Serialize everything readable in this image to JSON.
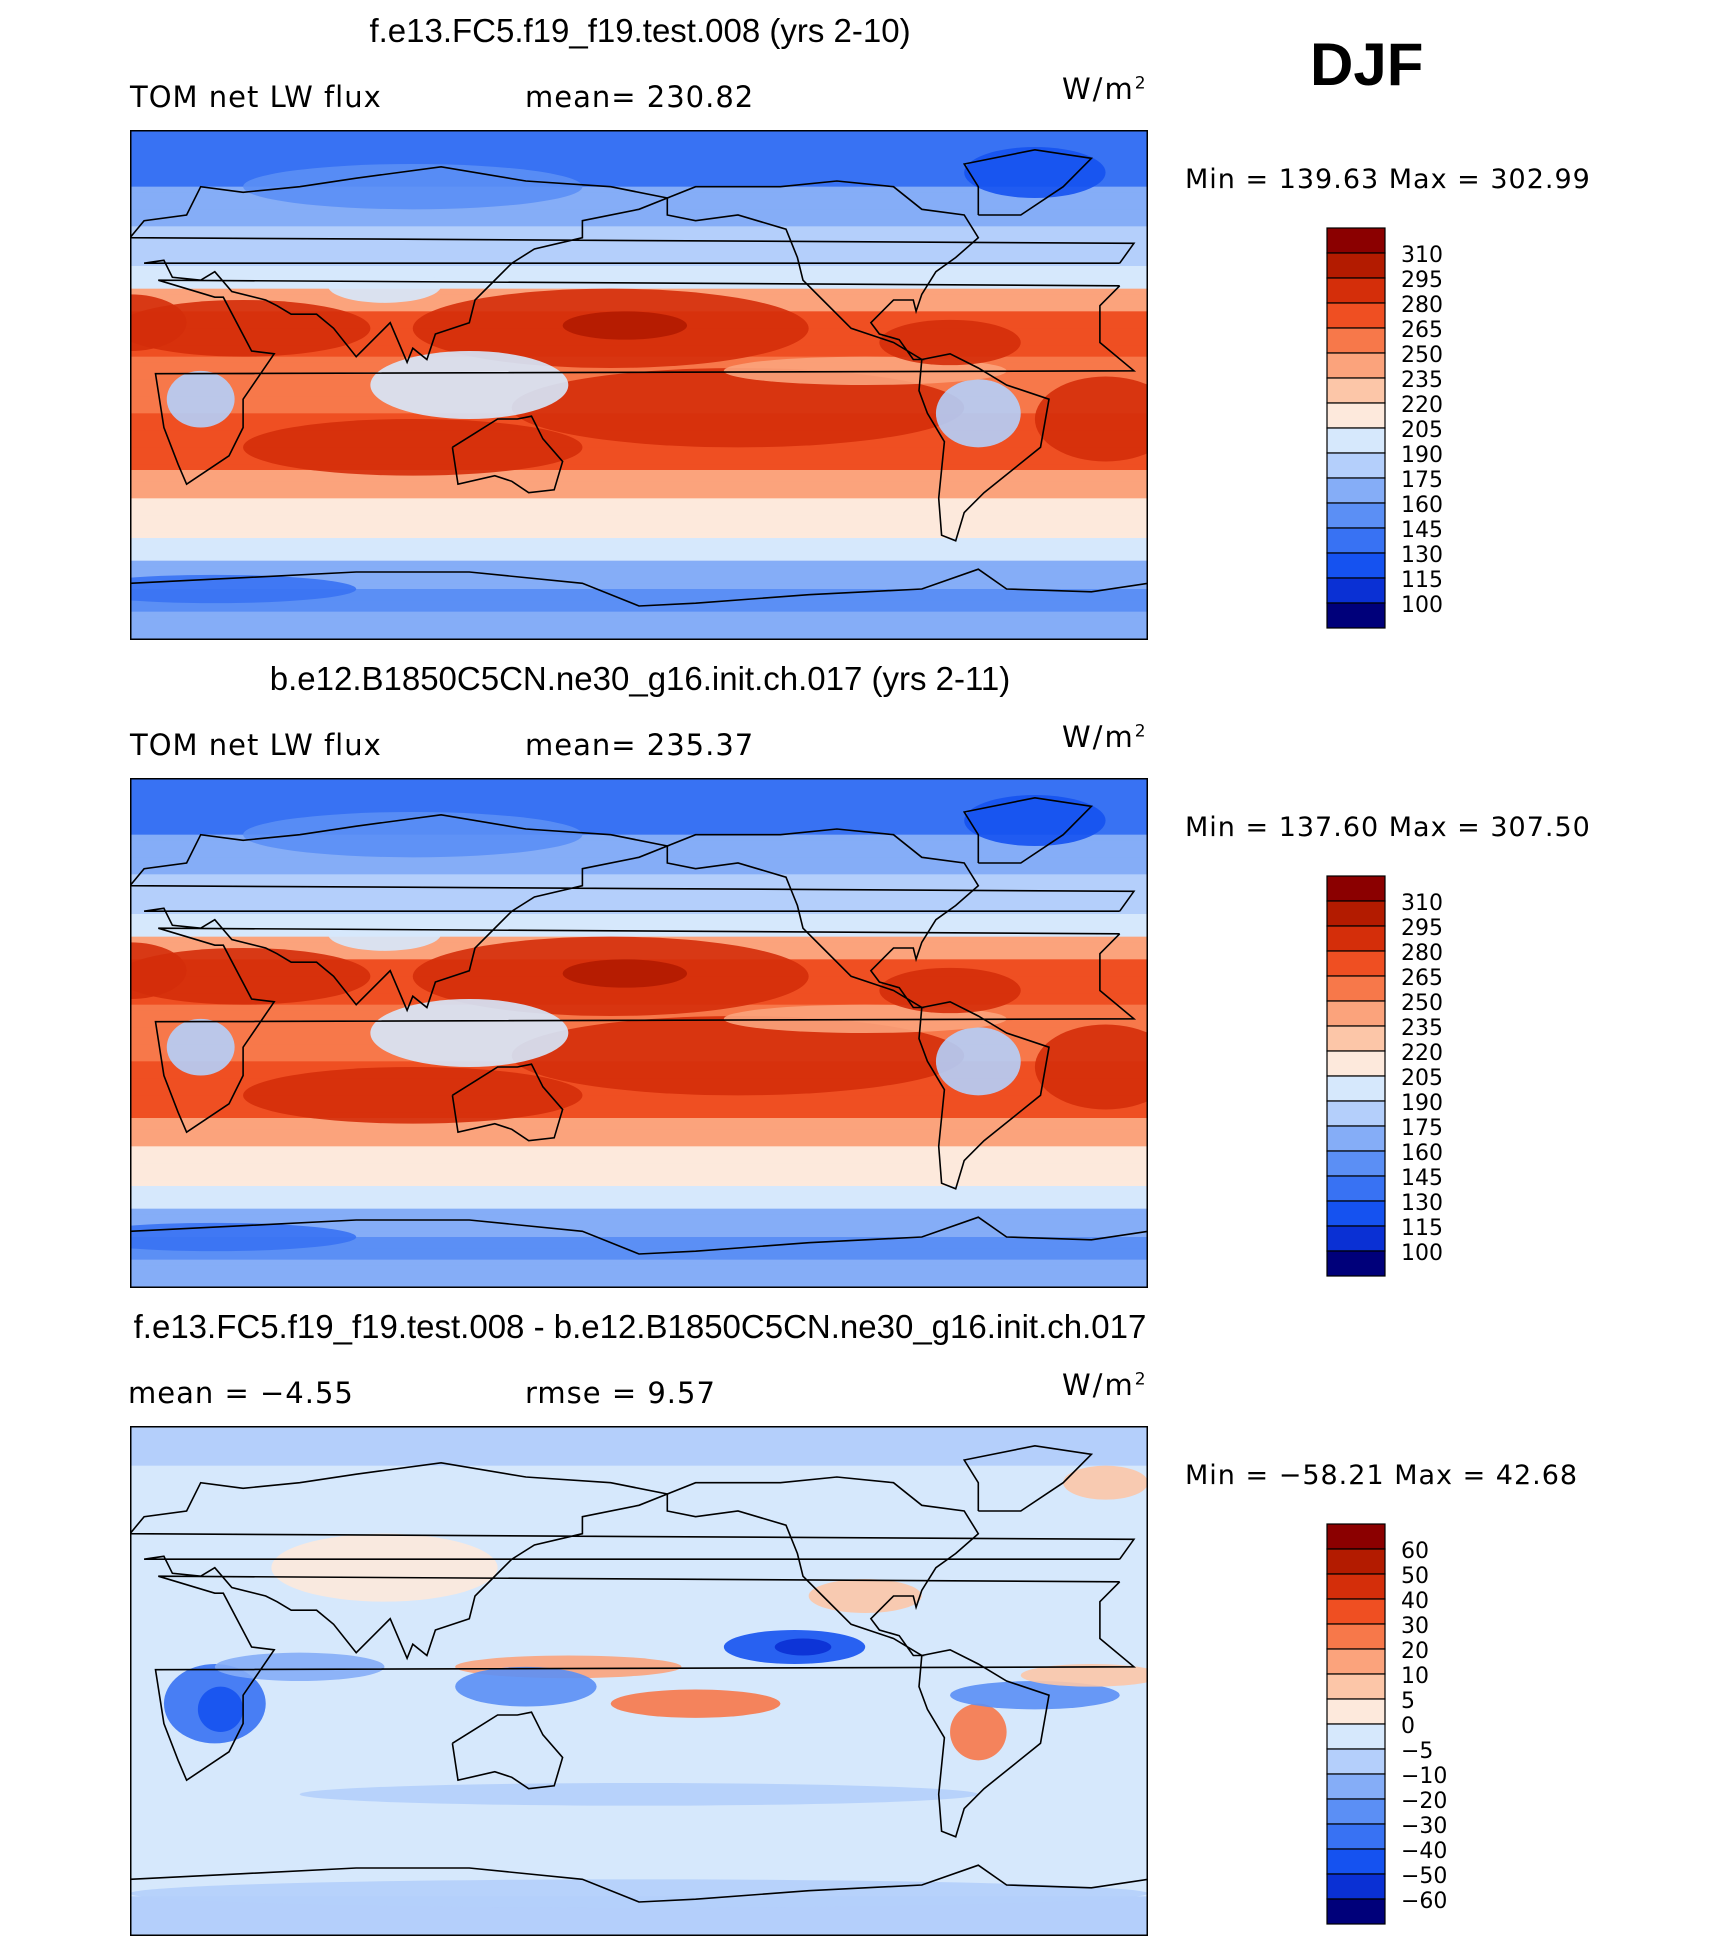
{
  "season": "DJF",
  "colors": {
    "warm": [
      "#fde9dc",
      "#fcc6a8",
      "#fba37c",
      "#f7784a",
      "#ef4f22",
      "#dc3311",
      "#bf1f05",
      "#8b0000"
    ],
    "cool": [
      "#00007a",
      "#0418a8",
      "#0a30d4",
      "#1552f0",
      "#3872f3",
      "#5b8ff5",
      "#85adf7",
      "#a8c6fa",
      "#cfe2fc"
    ],
    "coast": "#000000"
  },
  "panels": [
    {
      "title": "f.e13.FC5.f19_f19.test.008 (yrs 2-10)",
      "left_label": "TOM net LW flux",
      "middle_label": "mean= 230.82",
      "units_base": "W/m",
      "units_exp": "2",
      "minmax": "Min  =  139.63  Max  =  302.99"
    },
    {
      "title": "b.e12.B1850C5CN.ne30_g16.init.ch.017 (yrs 2-11)",
      "left_label": "TOM net LW flux",
      "middle_label": "mean= 235.37",
      "units_base": "W/m",
      "units_exp": "2",
      "minmax": "Min  =  137.60  Max  =  307.50"
    },
    {
      "title": "f.e13.FC5.f19_f19.test.008 - b.e12.B1850C5CN.ne30_g16.init.ch.017",
      "left_label": "mean  =    −4.55",
      "middle_label": "rmse  =     9.57",
      "units_base": "W/m",
      "units_exp": "2",
      "minmax": "Min  =  −58.21  Max  =    42.68"
    }
  ],
  "chart_data": [
    {
      "type": "heatmap",
      "title": "f.e13.FC5.f19_f19.test.008 (yrs 2-10)",
      "variable": "TOM net LW flux",
      "units": "W/m2",
      "mean": 230.82,
      "min": 139.63,
      "max": 302.99,
      "colorbar_levels": [
        "310",
        "295",
        "280",
        "265",
        "250",
        "235",
        "220",
        "205",
        "190",
        "175",
        "160",
        "145",
        "130",
        "115",
        "100"
      ],
      "xlim": [
        0,
        360
      ],
      "ylim": [
        -90,
        90
      ]
    },
    {
      "type": "heatmap",
      "title": "b.e12.B1850C5CN.ne30_g16.init.ch.017 (yrs 2-11)",
      "variable": "TOM net LW flux",
      "units": "W/m2",
      "mean": 235.37,
      "min": 137.6,
      "max": 307.5,
      "colorbar_levels": [
        "310",
        "295",
        "280",
        "265",
        "250",
        "235",
        "220",
        "205",
        "190",
        "175",
        "160",
        "145",
        "130",
        "115",
        "100"
      ],
      "xlim": [
        0,
        360
      ],
      "ylim": [
        -90,
        90
      ]
    },
    {
      "type": "heatmap",
      "title": "f.e13.FC5.f19_f19.test.008 - b.e12.B1850C5CN.ne30_g16.init.ch.017",
      "units": "W/m2",
      "mean": -4.55,
      "rmse": 9.57,
      "min": -58.21,
      "max": 42.68,
      "colorbar_levels": [
        "60",
        "50",
        "40",
        "30",
        "20",
        "10",
        "5",
        "0",
        "−5",
        "−10",
        "−20",
        "−30",
        "−40",
        "−50",
        "−60"
      ],
      "xlim": [
        0,
        360
      ],
      "ylim": [
        -90,
        90
      ]
    }
  ]
}
